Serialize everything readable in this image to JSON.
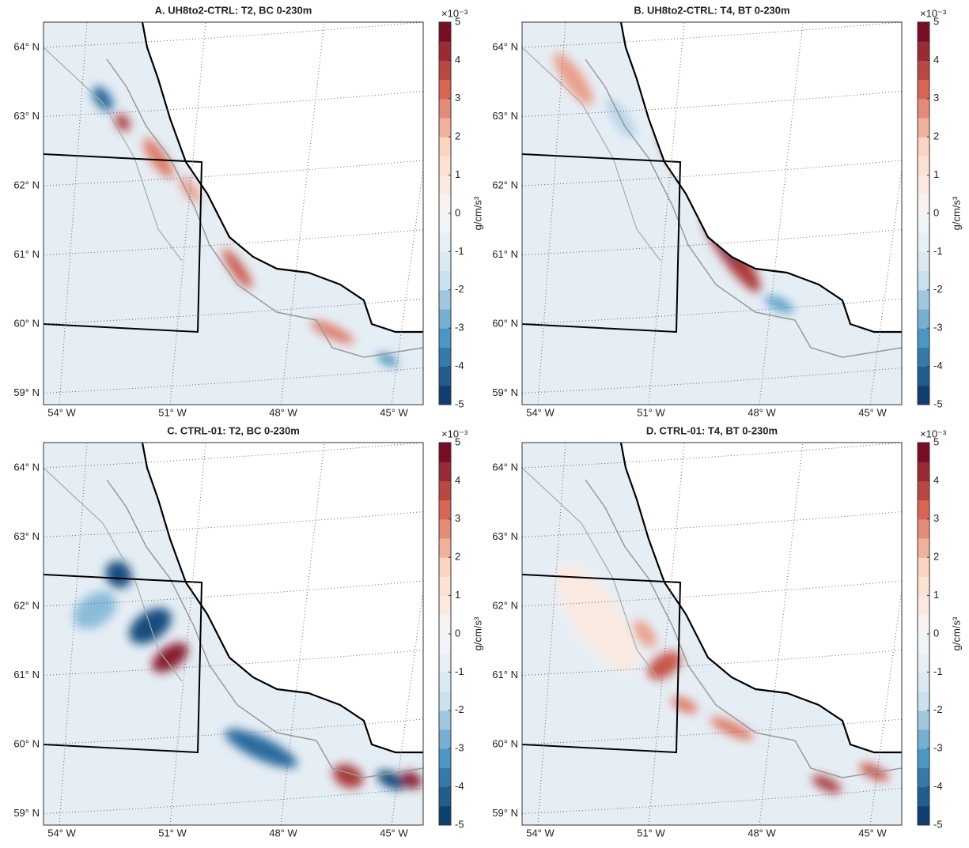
{
  "panels": [
    {
      "title": "A. UH8to2-CTRL: T2, BC 0-230m"
    },
    {
      "title": "B. UH8to2-CTRL: T4, BT 0-230m"
    },
    {
      "title": "C. CTRL-01: T2, BC 0-230m"
    },
    {
      "title": "D. CTRL-01: T4, BT 0-230m"
    }
  ],
  "latitude_labels": [
    "64° N",
    "63° N",
    "62° N",
    "61° N",
    "60° N",
    "59° N"
  ],
  "longitude_labels": [
    "54° W",
    "51° W",
    "48° W",
    "45° W"
  ],
  "colorbar": {
    "label": "g/cm/s³",
    "exponent": "×10⁻³",
    "lim": [
      -5,
      5
    ],
    "ticks": [
      5,
      4,
      3,
      2,
      1,
      0,
      -1,
      -2,
      -3,
      -4,
      -5
    ]
  }
}
